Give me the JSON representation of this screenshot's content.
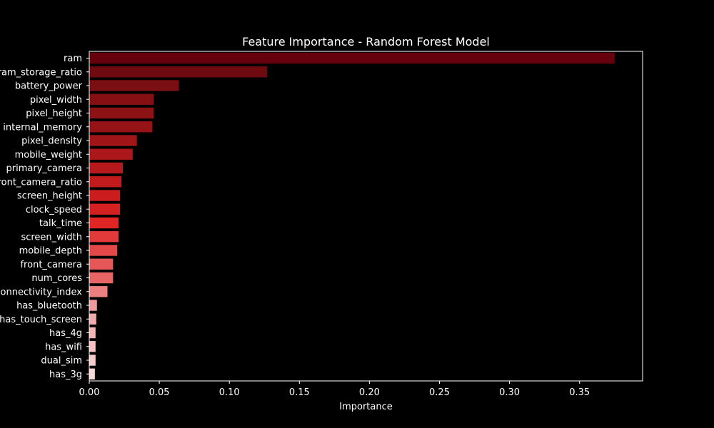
{
  "chart_data": {
    "type": "bar",
    "orientation": "horizontal",
    "title": "Feature Importance - Random Forest Model",
    "xlabel": "Importance",
    "ylabel": "",
    "xlim": [
      0,
      0.395
    ],
    "xticks": [
      0.0,
      0.05,
      0.1,
      0.15,
      0.2,
      0.25,
      0.3,
      0.35
    ],
    "xtick_labels": [
      "0.00",
      "0.05",
      "0.10",
      "0.15",
      "0.20",
      "0.25",
      "0.30",
      "0.35"
    ],
    "grid": false,
    "background": "#000000",
    "categories": [
      "ram",
      "ram_storage_ratio",
      "battery_power",
      "pixel_width",
      "pixel_height",
      "internal_memory",
      "pixel_density",
      "mobile_weight",
      "primary_camera",
      "front_camera_ratio",
      "screen_height",
      "clock_speed",
      "talk_time",
      "screen_width",
      "mobile_depth",
      "front_camera",
      "num_cores",
      "connectivity_index",
      "has_bluetooth",
      "has_touch_screen",
      "has_4g",
      "has_wifi",
      "dual_sim",
      "has_3g"
    ],
    "values": [
      0.375,
      0.127,
      0.064,
      0.046,
      0.046,
      0.045,
      0.034,
      0.031,
      0.024,
      0.023,
      0.022,
      0.022,
      0.021,
      0.021,
      0.02,
      0.017,
      0.017,
      0.013,
      0.0055,
      0.005,
      0.0045,
      0.0045,
      0.0045,
      0.004
    ],
    "colors": [
      "#67000d",
      "#6f0a10",
      "#7a0e12",
      "#851013",
      "#8d1215",
      "#951316",
      "#a01518",
      "#ab171a",
      "#b6191b",
      "#c11b1d",
      "#cb1d1e",
      "#d42020",
      "#e12525",
      "#e23a3a",
      "#e44848",
      "#e65858",
      "#e86565",
      "#ec7f7f",
      "#f09a9a",
      "#f3aaaa",
      "#f5b5b5",
      "#f7c0c0",
      "#f9cccc",
      "#fcd9d9"
    ]
  }
}
